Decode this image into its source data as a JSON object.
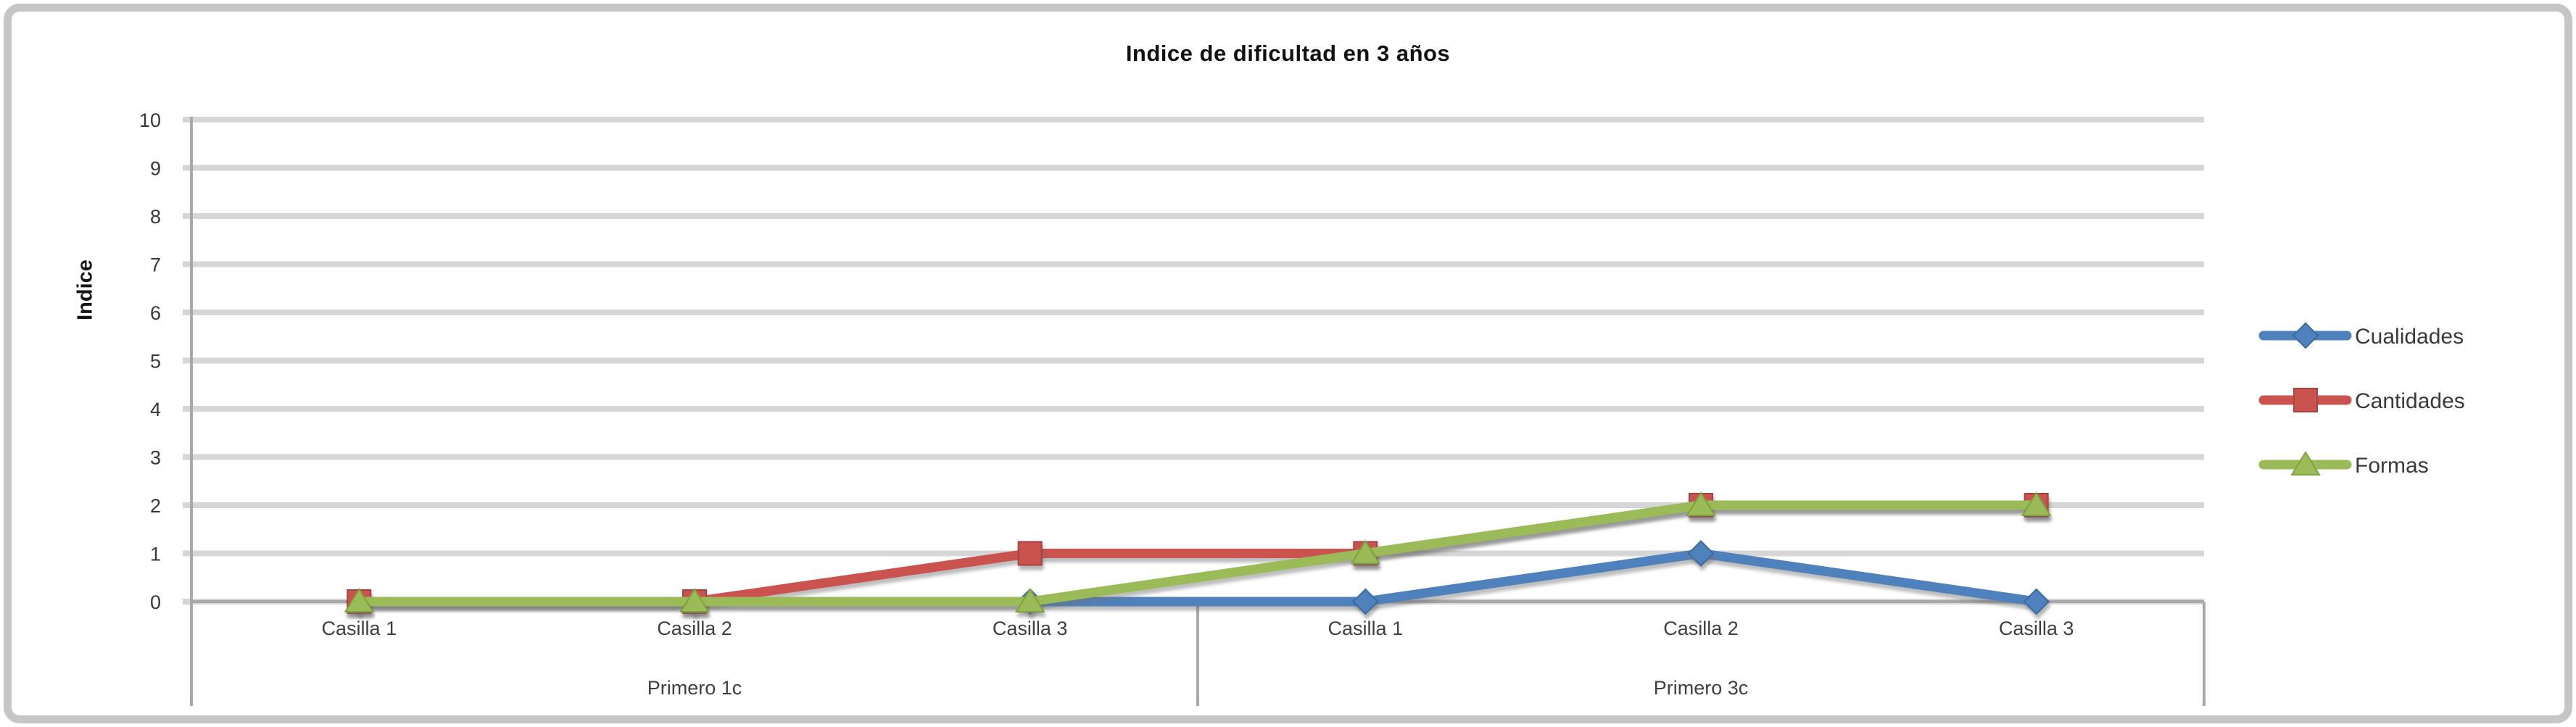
{
  "title": "Indice de dificultad en 3 años",
  "chart_data": {
    "type": "line",
    "title": "Indice de dificultad en 3 años",
    "xlabel": "",
    "ylabel": "Indice",
    "ylim": [
      0,
      10
    ],
    "ytick_step": 1,
    "grid": true,
    "grid_color": "#D6D6D6",
    "axis_color": "#A8A8A8",
    "legend_position": "right",
    "group_labels": [
      "Primero 1c",
      "Primero 3c"
    ],
    "categories": [
      "Casilla 1",
      "Casilla 2",
      "Casilla 3",
      "Casilla 1",
      "Casilla 2",
      "Casilla 3"
    ],
    "category_group_index": [
      0,
      0,
      0,
      1,
      1,
      1
    ],
    "series": [
      {
        "name": "Cualidades",
        "values": [
          0,
          0,
          0,
          0,
          1,
          0
        ],
        "color": "#4F81BD",
        "edge_color": "#3A6A9E",
        "marker": "diamond"
      },
      {
        "name": "Cantidades",
        "values": [
          0,
          0,
          1,
          1,
          2,
          2
        ],
        "color": "#CB534F",
        "edge_color": "#A6423F",
        "marker": "square"
      },
      {
        "name": "Formas",
        "values": [
          0,
          0,
          0,
          1,
          2,
          2
        ],
        "color": "#9BBB59",
        "edge_color": "#7FA23F",
        "marker": "triangle"
      }
    ]
  }
}
